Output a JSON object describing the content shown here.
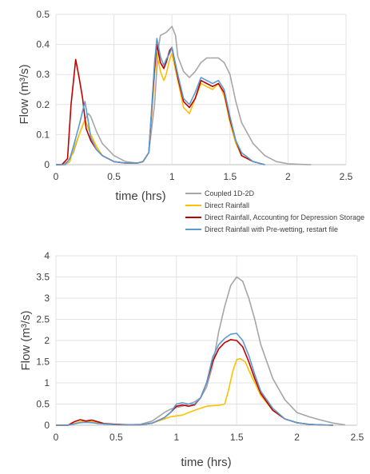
{
  "chart_data": [
    {
      "type": "line",
      "title": "",
      "xlabel": "time (hrs)",
      "ylabel": "Flow (m³/s)",
      "xlim": [
        0,
        2.5
      ],
      "ylim": [
        0,
        0.5
      ],
      "xticks": [
        "0",
        "0.5",
        "1",
        "1.5",
        "2",
        "2.5"
      ],
      "yticks": [
        "0",
        "0.1",
        "0.2",
        "0.3",
        "0.4",
        "0.5"
      ],
      "grid": true,
      "legend_position": "bottom-right",
      "series": [
        {
          "name": "Coupled 1D-2D",
          "color": "#a6a6a6",
          "x": [
            0,
            0.05,
            0.1,
            0.15,
            0.2,
            0.25,
            0.28,
            0.3,
            0.35,
            0.4,
            0.5,
            0.6,
            0.7,
            0.75,
            0.8,
            0.85,
            0.88,
            0.9,
            0.95,
            1.0,
            1.03,
            1.05,
            1.1,
            1.15,
            1.2,
            1.25,
            1.3,
            1.35,
            1.4,
            1.45,
            1.5,
            1.55,
            1.6,
            1.7,
            1.8,
            1.9,
            2.0,
            2.1,
            2.2
          ],
          "y": [
            0,
            0,
            0.01,
            0.04,
            0.1,
            0.15,
            0.17,
            0.16,
            0.11,
            0.07,
            0.03,
            0.01,
            0.005,
            0.01,
            0.04,
            0.2,
            0.38,
            0.43,
            0.44,
            0.46,
            0.43,
            0.36,
            0.31,
            0.29,
            0.31,
            0.34,
            0.355,
            0.355,
            0.355,
            0.34,
            0.3,
            0.21,
            0.14,
            0.07,
            0.03,
            0.01,
            0.003,
            0.001,
            0
          ]
        },
        {
          "name": "Direct Rainfall",
          "color": "#ffc000",
          "x": [
            0,
            0.08,
            0.12,
            0.15,
            0.2,
            0.25,
            0.3,
            0.35,
            0.4,
            0.5,
            0.6,
            0.7,
            0.75,
            0.8,
            0.85,
            0.87,
            0.9,
            0.93,
            0.95,
            0.98,
            1.0,
            1.05,
            1.1,
            1.15,
            1.2,
            1.25,
            1.3,
            1.35,
            1.4,
            1.45,
            1.5,
            1.55,
            1.6,
            1.7,
            1.8
          ],
          "y": [
            0,
            0,
            0.01,
            0.05,
            0.1,
            0.15,
            0.1,
            0.06,
            0.03,
            0.01,
            0.005,
            0.005,
            0.01,
            0.04,
            0.3,
            0.37,
            0.31,
            0.28,
            0.3,
            0.35,
            0.37,
            0.28,
            0.19,
            0.17,
            0.22,
            0.27,
            0.26,
            0.25,
            0.27,
            0.23,
            0.14,
            0.07,
            0.03,
            0.01,
            0
          ],
          "name_label": "Direct Rainfall"
        },
        {
          "name": "Direct Rainfall, Accounting for Depression Storage",
          "color": "#c00000",
          "x": [
            0,
            0.05,
            0.1,
            0.13,
            0.17,
            0.2,
            0.23,
            0.26,
            0.3,
            0.35,
            0.4,
            0.5,
            0.6,
            0.7,
            0.75,
            0.8,
            0.85,
            0.87,
            0.9,
            0.93,
            0.95,
            0.98,
            1.0,
            1.05,
            1.1,
            1.15,
            1.2,
            1.25,
            1.3,
            1.35,
            1.4,
            1.45,
            1.5,
            1.55,
            1.6,
            1.7,
            1.8
          ],
          "y": [
            0,
            0,
            0.02,
            0.2,
            0.35,
            0.29,
            0.22,
            0.12,
            0.08,
            0.05,
            0.03,
            0.01,
            0.005,
            0.005,
            0.01,
            0.04,
            0.32,
            0.4,
            0.34,
            0.32,
            0.34,
            0.38,
            0.39,
            0.29,
            0.21,
            0.19,
            0.22,
            0.28,
            0.27,
            0.26,
            0.27,
            0.24,
            0.15,
            0.08,
            0.03,
            0.01,
            0
          ]
        },
        {
          "name": "Direct Rainfall with Pre-wetting, restart file",
          "color": "#5b9bd5",
          "x": [
            0,
            0.08,
            0.12,
            0.15,
            0.2,
            0.25,
            0.28,
            0.3,
            0.35,
            0.4,
            0.5,
            0.6,
            0.7,
            0.75,
            0.8,
            0.85,
            0.87,
            0.9,
            0.93,
            0.95,
            0.98,
            1.0,
            1.05,
            1.1,
            1.15,
            1.2,
            1.25,
            1.3,
            1.35,
            1.4,
            1.45,
            1.5,
            1.55,
            1.6,
            1.7,
            1.8
          ],
          "y": [
            0,
            0,
            0.02,
            0.06,
            0.13,
            0.21,
            0.14,
            0.09,
            0.05,
            0.03,
            0.01,
            0.005,
            0.005,
            0.01,
            0.04,
            0.34,
            0.42,
            0.36,
            0.33,
            0.35,
            0.37,
            0.39,
            0.3,
            0.22,
            0.2,
            0.24,
            0.29,
            0.28,
            0.27,
            0.28,
            0.25,
            0.16,
            0.08,
            0.04,
            0.01,
            0
          ]
        }
      ]
    },
    {
      "type": "line",
      "title": "",
      "xlabel": "time (hrs)",
      "ylabel": "Flow (m³/s)",
      "xlim": [
        0,
        2.5
      ],
      "ylim": [
        0,
        4
      ],
      "xticks": [
        "0",
        "0.5",
        "1",
        "1.5",
        "2",
        "2.5"
      ],
      "yticks": [
        "0",
        "0.5",
        "1",
        "1.5",
        "2",
        "2.5",
        "3",
        "3.5",
        "4"
      ],
      "grid": true,
      "series": [
        {
          "color": "#a6a6a6",
          "x": [
            0,
            0.1,
            0.15,
            0.2,
            0.25,
            0.3,
            0.35,
            0.4,
            0.5,
            0.6,
            0.7,
            0.8,
            0.9,
            0.95,
            1.0,
            1.05,
            1.1,
            1.15,
            1.2,
            1.25,
            1.3,
            1.35,
            1.4,
            1.45,
            1.5,
            1.55,
            1.6,
            1.65,
            1.7,
            1.8,
            1.9,
            2.0,
            2.1,
            2.2,
            2.3,
            2.4
          ],
          "y": [
            0,
            0,
            0.03,
            0.06,
            0.08,
            0.08,
            0.06,
            0.04,
            0.02,
            0.01,
            0.02,
            0.1,
            0.3,
            0.38,
            0.42,
            0.45,
            0.5,
            0.55,
            0.65,
            0.9,
            1.4,
            2.2,
            2.8,
            3.3,
            3.5,
            3.4,
            3.0,
            2.5,
            1.9,
            1.1,
            0.6,
            0.3,
            0.2,
            0.12,
            0.05,
            0.01
          ]
        },
        {
          "color": "#ffc000",
          "x": [
            0,
            0.1,
            0.15,
            0.2,
            0.25,
            0.3,
            0.35,
            0.4,
            0.5,
            0.6,
            0.7,
            0.8,
            0.9,
            0.95,
            1.0,
            1.05,
            1.1,
            1.15,
            1.2,
            1.25,
            1.3,
            1.35,
            1.4,
            1.43,
            1.47,
            1.5,
            1.53,
            1.57,
            1.6,
            1.65,
            1.7,
            1.8,
            1.9,
            2.0,
            2.1,
            2.2,
            2.3
          ],
          "y": [
            0,
            0,
            0.04,
            0.08,
            0.1,
            0.08,
            0.05,
            0.03,
            0.01,
            0.005,
            0.01,
            0.05,
            0.15,
            0.2,
            0.22,
            0.24,
            0.3,
            0.35,
            0.4,
            0.45,
            0.46,
            0.47,
            0.5,
            0.8,
            1.3,
            1.55,
            1.57,
            1.5,
            1.3,
            1.0,
            0.7,
            0.35,
            0.15,
            0.06,
            0.02,
            0.01,
            0
          ]
        },
        {
          "color": "#c00000",
          "x": [
            0,
            0.1,
            0.15,
            0.2,
            0.25,
            0.3,
            0.35,
            0.4,
            0.5,
            0.6,
            0.7,
            0.8,
            0.9,
            0.95,
            1.0,
            1.05,
            1.1,
            1.15,
            1.2,
            1.25,
            1.3,
            1.35,
            1.4,
            1.45,
            1.5,
            1.55,
            1.6,
            1.65,
            1.7,
            1.8,
            1.9,
            2.0,
            2.1,
            2.2,
            2.3
          ],
          "y": [
            0,
            0,
            0.08,
            0.13,
            0.1,
            0.12,
            0.08,
            0.04,
            0.02,
            0.01,
            0.01,
            0.05,
            0.18,
            0.3,
            0.45,
            0.48,
            0.45,
            0.48,
            0.65,
            1.0,
            1.5,
            1.8,
            1.95,
            2.02,
            2.0,
            1.85,
            1.5,
            1.1,
            0.75,
            0.35,
            0.15,
            0.06,
            0.02,
            0.01,
            0
          ]
        },
        {
          "color": "#5b9bd5",
          "x": [
            0,
            0.1,
            0.15,
            0.2,
            0.25,
            0.3,
            0.35,
            0.4,
            0.5,
            0.6,
            0.7,
            0.8,
            0.9,
            0.95,
            1.0,
            1.05,
            1.1,
            1.15,
            1.2,
            1.25,
            1.3,
            1.35,
            1.4,
            1.45,
            1.5,
            1.55,
            1.6,
            1.65,
            1.7,
            1.8,
            1.9,
            2.0,
            2.1,
            2.2,
            2.3
          ],
          "y": [
            0,
            0,
            0.03,
            0.06,
            0.07,
            0.06,
            0.04,
            0.03,
            0.01,
            0.005,
            0.01,
            0.05,
            0.18,
            0.3,
            0.5,
            0.53,
            0.5,
            0.5,
            0.65,
            1.0,
            1.6,
            1.9,
            2.05,
            2.15,
            2.17,
            2.0,
            1.65,
            1.2,
            0.8,
            0.4,
            0.15,
            0.06,
            0.02,
            0.01,
            0
          ]
        }
      ]
    }
  ]
}
